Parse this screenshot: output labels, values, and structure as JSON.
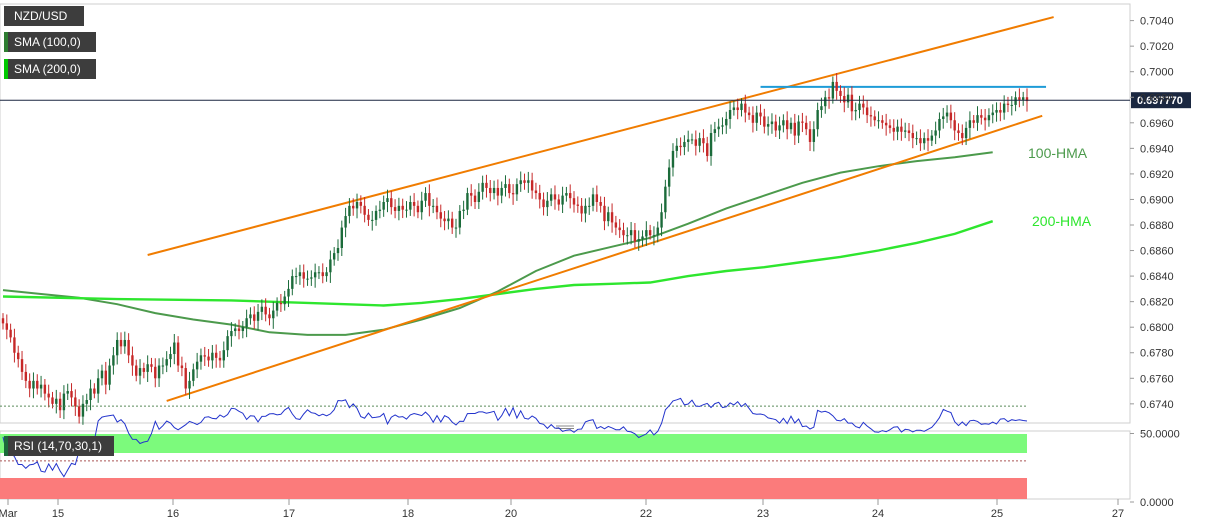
{
  "legend": {
    "symbol": "NZD/USD",
    "sma100": "SMA (100,0)",
    "sma200": "SMA (200,0)",
    "sma100_color": "#2e7d32",
    "sma200_color": "#00c800"
  },
  "price_tag": "0.697770",
  "rsi_tag": "RSI (14,70,30,1)",
  "labels": {
    "hma100": "100-HMA",
    "hma200": "200-HMA"
  },
  "colors": {
    "up": "#1b6b3a",
    "down": "#c62828",
    "channel": "#f07c00",
    "resistance": "#1e9bd7",
    "hma100": "#4c9a4c",
    "hma200": "#2ee62e",
    "rsi": "#2233cc",
    "overbought": "#7cfa7c",
    "oversold": "#fb7b7b"
  },
  "chart_data": [
    {
      "type": "candlestick",
      "title": "NZD/USD",
      "x_ticks": [
        "Mar",
        "15",
        "16",
        "17",
        "18",
        "20",
        "22",
        "23",
        "24",
        "25",
        "27"
      ],
      "y_ticks": [
        "0.7040",
        "0.7020",
        "0.7000",
        "0.6980",
        "0.6960",
        "0.6940",
        "0.6920",
        "0.6900",
        "0.6880",
        "0.6860",
        "0.6840",
        "0.6820",
        "0.6800",
        "0.6780",
        "0.6760",
        "0.6740"
      ],
      "ylim": [
        0.6725,
        0.7053
      ],
      "last_price": 0.69777,
      "grid": false,
      "closes": [
        0.6803,
        0.6798,
        0.6792,
        0.678,
        0.6775,
        0.6765,
        0.6758,
        0.6752,
        0.6758,
        0.6752,
        0.6755,
        0.6748,
        0.6745,
        0.674,
        0.6744,
        0.6735,
        0.6748,
        0.675,
        0.6745,
        0.6738,
        0.673,
        0.674,
        0.6743,
        0.6752,
        0.6748,
        0.676,
        0.6766,
        0.6755,
        0.677,
        0.6778,
        0.679,
        0.6785,
        0.679,
        0.6778,
        0.677,
        0.6762,
        0.6768,
        0.6765,
        0.6771,
        0.6769,
        0.676,
        0.677,
        0.677,
        0.6775,
        0.6779,
        0.6788,
        0.677,
        0.6768,
        0.6752,
        0.6758,
        0.6767,
        0.6773,
        0.6778,
        0.6777,
        0.6774,
        0.678,
        0.6776,
        0.6774,
        0.6782,
        0.6793,
        0.6797,
        0.6799,
        0.6797,
        0.68,
        0.6807,
        0.681,
        0.6805,
        0.6812,
        0.6816,
        0.681,
        0.6807,
        0.6813,
        0.6819,
        0.6818,
        0.6824,
        0.683,
        0.684,
        0.684,
        0.6843,
        0.6838,
        0.6838,
        0.6839,
        0.6843,
        0.6843,
        0.684,
        0.6843,
        0.6853,
        0.6858,
        0.6862,
        0.6878,
        0.6887,
        0.6895,
        0.6893,
        0.6898,
        0.6895,
        0.6888,
        0.6884,
        0.6884,
        0.6891,
        0.6892,
        0.6898,
        0.6901,
        0.6894,
        0.6891,
        0.6895,
        0.6892,
        0.6892,
        0.6898,
        0.6895,
        0.689,
        0.6899,
        0.6905,
        0.6895,
        0.6895,
        0.689,
        0.6885,
        0.6883,
        0.6885,
        0.6878,
        0.6878,
        0.6891,
        0.6892,
        0.6905,
        0.6903,
        0.6898,
        0.6906,
        0.6913,
        0.6909,
        0.6905,
        0.6909,
        0.6903,
        0.6909,
        0.6912,
        0.6905,
        0.6904,
        0.6912,
        0.6915,
        0.6913,
        0.6915,
        0.6907,
        0.6905,
        0.69,
        0.6894,
        0.6899,
        0.6904,
        0.69,
        0.6896,
        0.6903,
        0.6905,
        0.6901,
        0.6896,
        0.6895,
        0.6889,
        0.6895,
        0.6895,
        0.6904,
        0.6898,
        0.6895,
        0.6883,
        0.689,
        0.6882,
        0.6878,
        0.6876,
        0.6872,
        0.6872,
        0.6876,
        0.6867,
        0.6869,
        0.6871,
        0.6876,
        0.6872,
        0.6872,
        0.6878,
        0.689,
        0.691,
        0.6925,
        0.6938,
        0.6942,
        0.6941,
        0.6945,
        0.6947,
        0.6947,
        0.6942,
        0.6948,
        0.6944,
        0.6934,
        0.6952,
        0.6955,
        0.6957,
        0.6958,
        0.6963,
        0.697,
        0.6972,
        0.697,
        0.6975,
        0.6968,
        0.6966,
        0.696,
        0.6968,
        0.6965,
        0.6957,
        0.6959,
        0.6961,
        0.6954,
        0.6958,
        0.6962,
        0.6955,
        0.696,
        0.695,
        0.6961,
        0.696,
        0.6955,
        0.6945,
        0.6955,
        0.697,
        0.6973,
        0.698,
        0.6979,
        0.6992,
        0.6985,
        0.6981,
        0.6976,
        0.6982,
        0.6969,
        0.697,
        0.6975,
        0.6972,
        0.6966,
        0.6965,
        0.6962,
        0.6962,
        0.696,
        0.6958,
        0.6956,
        0.6953,
        0.6957,
        0.6953,
        0.6954,
        0.6952,
        0.6948,
        0.6948,
        0.6944,
        0.6948,
        0.6946,
        0.695,
        0.6954,
        0.6963,
        0.6965,
        0.6968,
        0.6962,
        0.6954,
        0.6952,
        0.6948,
        0.6956,
        0.6962,
        0.696,
        0.6966,
        0.6964,
        0.6962,
        0.6966,
        0.6968,
        0.697,
        0.6968,
        0.6975,
        0.6974,
        0.6974,
        0.698,
        0.6978,
        0.698,
        0.6977
      ],
      "series": [
        {
          "name": "100-HMA",
          "points": [
            [
              0,
              0.6829
            ],
            [
              10,
              0.6826
            ],
            [
              20,
              0.6823
            ],
            [
              30,
              0.6818
            ],
            [
              40,
              0.6811
            ],
            [
              50,
              0.6806
            ],
            [
              60,
              0.6802
            ],
            [
              70,
              0.6796
            ],
            [
              80,
              0.6794
            ],
            [
              90,
              0.6794
            ],
            [
              100,
              0.6798
            ],
            [
              110,
              0.6806
            ],
            [
              120,
              0.6815
            ],
            [
              130,
              0.6828
            ],
            [
              140,
              0.6844
            ],
            [
              150,
              0.6856
            ],
            [
              160,
              0.6863
            ],
            [
              170,
              0.687
            ],
            [
              180,
              0.6881
            ],
            [
              190,
              0.6893
            ],
            [
              200,
              0.6903
            ],
            [
              210,
              0.6913
            ],
            [
              220,
              0.6921
            ],
            [
              230,
              0.6926
            ],
            [
              240,
              0.693
            ],
            [
              250,
              0.6933
            ],
            [
              260,
              0.6937
            ]
          ]
        },
        {
          "name": "200-HMA",
          "points": [
            [
              0,
              0.6824
            ],
            [
              30,
              0.6822
            ],
            [
              60,
              0.6821
            ],
            [
              80,
              0.6819
            ],
            [
              100,
              0.6817
            ],
            [
              110,
              0.6819
            ],
            [
              120,
              0.6822
            ],
            [
              130,
              0.6826
            ],
            [
              140,
              0.683
            ],
            [
              150,
              0.6833
            ],
            [
              160,
              0.6834
            ],
            [
              170,
              0.6835
            ],
            [
              180,
              0.684
            ],
            [
              190,
              0.6844
            ],
            [
              200,
              0.6847
            ],
            [
              210,
              0.6851
            ],
            [
              220,
              0.6855
            ],
            [
              230,
              0.686
            ],
            [
              240,
              0.6866
            ],
            [
              250,
              0.6873
            ],
            [
              260,
              0.6883
            ]
          ]
        },
        {
          "name": "channel-top",
          "points": [
            [
              38,
              0.68565
            ],
            [
              276,
              0.70428
            ]
          ]
        },
        {
          "name": "channel-bottom",
          "points": [
            [
              43,
              0.67423
            ],
            [
              273,
              0.69655
            ]
          ]
        },
        {
          "name": "resistance",
          "points": [
            [
              199,
              0.69881
            ],
            [
              274,
              0.69881
            ]
          ]
        }
      ]
    },
    {
      "type": "line",
      "title": "RSI (14,70,30,1)",
      "y_ticks": [
        "50.0000",
        "0.0000"
      ],
      "ylim": [
        0,
        100
      ],
      "overbought": 70,
      "oversold": 30,
      "rsi": [
        47.5,
        35.5,
        35.8,
        33.2,
        27.4,
        27.4,
        24.6,
        27.1,
        27.5,
        29.3,
        22.5,
        21.8,
        27.8,
        23.2,
        28.1,
        22.6,
        18.5,
        23.4,
        28.2,
        27.3,
        37.4,
        40.4,
        38.8,
        41.5,
        45.1,
        59.2,
        62.0,
        62.6,
        63.1,
        63.5,
        58.4,
        60.1,
        57.1,
        50.3,
        45.8,
        45.7,
        42.7,
        43.8,
        44.4,
        50.0,
        58.8,
        53.1,
        55.7,
        59.1,
        57.7,
        54.3,
        52.7,
        54.5,
        56.4,
        58.8,
        57.8,
        56.5,
        58.1,
        61.8,
        62.2,
        61.0,
        60.7,
        63.5,
        61.9,
        63.9,
        68.4,
        68.0,
        66.2,
        64.8,
        60.2,
        62.9,
        62.7,
        58.5,
        62.5,
        62.6,
        64.3,
        64.5,
        63.6,
        64.0,
        67.2,
        69.0,
        64.3,
        60.8,
        60.3,
        64.2,
        67.3,
        65.2,
        64.7,
        62.9,
        64.1,
        62.9,
        64.3,
        67.4,
        74.1,
        73.8,
        74.5,
        68.8,
        71.6,
        68.4,
        62.3,
        61.2,
        64.9,
        61.5,
        61.8,
        62.3,
        64.6,
        57.0,
        61.9,
        63.6,
        62.0,
        62.3,
        60.5,
        63.6,
        64.6,
        63.9,
        63.1,
        65.6,
        62.9,
        58.2,
        63.1,
        58.4,
        63.0,
        61.7,
        58.3,
        56.2,
        59.0,
        58.8,
        64.5,
        64.6,
        64.6,
        65.8,
        65.8,
        64.8,
        65.4,
        66.2,
        59.6,
        63.1,
        68.4,
        63.0,
        68.8,
        61.3,
        66.6,
        61.2,
        60.5,
        62.8,
        61.1,
        57.4,
        56.7,
        53.7,
        56.5,
        53.9,
        54.1,
        51.5,
        52.4,
        52.7,
        50.9,
        53.1,
        53.3,
        58.5,
        59.5,
        60.1,
        53.7,
        55.0,
        53.4,
        55.2,
        54.1,
        52.8,
        52.8,
        54.9,
        51.6,
        51.2,
        49.8,
        47.1,
        48.4,
        49.7,
        52.6,
        49.0,
        51.6,
        57.5,
        67.3,
        70.3,
        73.8,
        74.6,
        75.6,
        70.9,
        71.5,
        74.3,
        70.0,
        69.8,
        71.0,
        72.0,
        69.0,
        71.8,
        72.8,
        68.9,
        69.5,
        72.3,
        70.9,
        73.2,
        69.6,
        71.9,
        68.3,
        64.6,
        64.1,
        64.2,
        63.6,
        61.4,
        60.8,
        60.1,
        57.5,
        61.1,
        57.2,
        62.6,
        57.7,
        60.6,
        55.0,
        55.5,
        53.3,
        54.6,
        66.9,
        65.6,
        66.2,
        65.1,
        62.9,
        59.6,
        59.2,
        60.8,
        57.6,
        57.7,
        55.0,
        54.1,
        58.1,
        55.5,
        53.4,
        51.2,
        50.9,
        52.1,
        51.3,
        52.8,
        54.7,
        54.9,
        51.1,
        53.1,
        52.7,
        51.2,
        52.4,
        52.3,
        51.6,
        53.1,
        54.5,
        57.7,
        61.5,
        67.6,
        66.3,
        65.3,
        58.6,
        55.8,
        58.4,
        55.8,
        59.3,
        59.6,
        58.8,
        56.7,
        57.1,
        56.8,
        58.3,
        56.9,
        60.5,
        60.9,
        58.7,
        60.1,
        59.5,
        60.1,
        59.5,
        59.1
      ]
    }
  ]
}
